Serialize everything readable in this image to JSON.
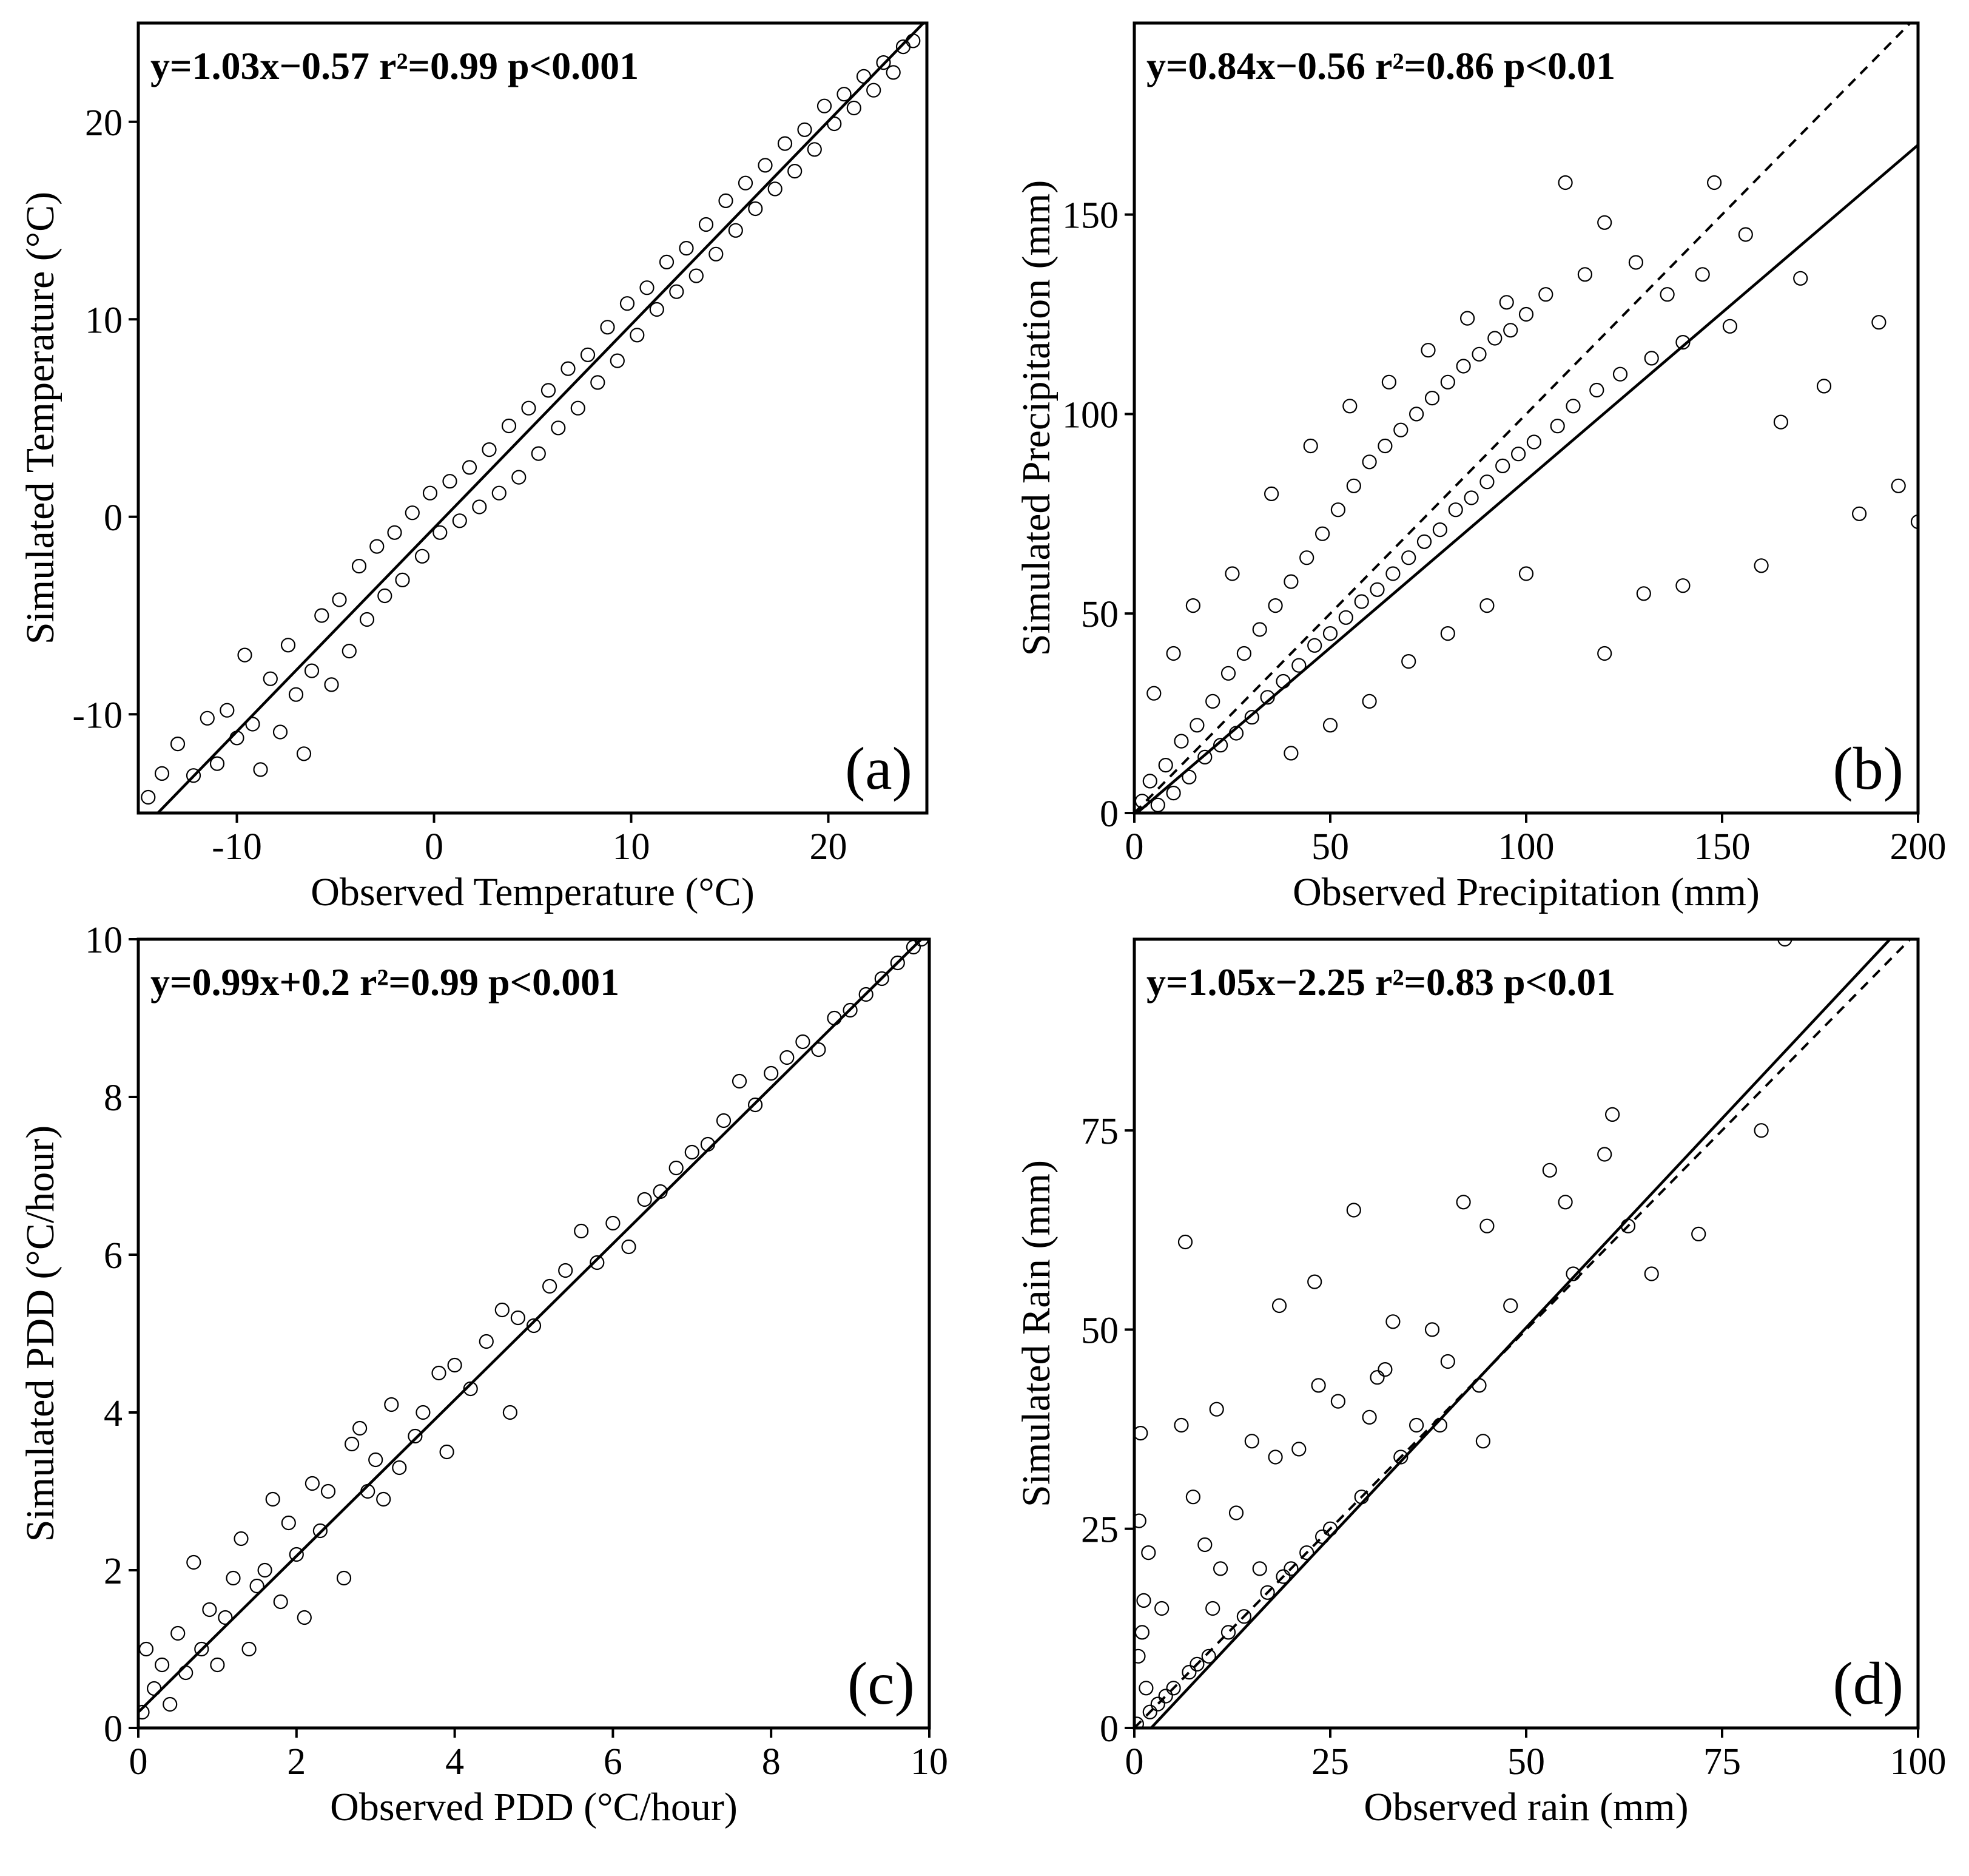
{
  "chart_data": [
    {
      "id": "a",
      "type": "scatter",
      "panel_label": "(a)",
      "xlabel": "Observed Temperature (°C)",
      "ylabel": "Simulated Temperature (°C)",
      "xlim": [
        -15,
        25
      ],
      "ylim": [
        -15,
        25
      ],
      "xticks": [
        -10,
        0,
        10,
        20
      ],
      "yticks": [
        -10,
        0,
        10,
        20
      ],
      "xtick_labels": [
        "-10",
        "0",
        "10",
        "20"
      ],
      "ytick_labels": [
        "-10",
        "0",
        "10",
        "20"
      ],
      "equation": "y=1.03x−0.57  r²=0.99  p<0.001",
      "fit": {
        "slope": 1.03,
        "intercept": -0.57,
        "r2": 0.99,
        "p": "p<0.001"
      },
      "one_to_one_line": false,
      "points": [
        [
          -14.5,
          -14.2
        ],
        [
          -13.8,
          -13.0
        ],
        [
          -13.0,
          -11.5
        ],
        [
          -12.2,
          -13.1
        ],
        [
          -11.5,
          -10.2
        ],
        [
          -11.0,
          -12.5
        ],
        [
          -10.5,
          -9.8
        ],
        [
          -10.0,
          -11.2
        ],
        [
          -9.6,
          -7.0
        ],
        [
          -9.2,
          -10.5
        ],
        [
          -8.8,
          -12.8
        ],
        [
          -8.3,
          -8.2
        ],
        [
          -7.8,
          -10.9
        ],
        [
          -7.4,
          -6.5
        ],
        [
          -7.0,
          -9.0
        ],
        [
          -6.6,
          -12.0
        ],
        [
          -6.2,
          -7.8
        ],
        [
          -5.7,
          -5.0
        ],
        [
          -5.2,
          -8.5
        ],
        [
          -4.8,
          -4.2
        ],
        [
          -4.3,
          -6.8
        ],
        [
          -3.8,
          -2.5
        ],
        [
          -3.4,
          -5.2
        ],
        [
          -2.9,
          -1.5
        ],
        [
          -2.5,
          -4.0
        ],
        [
          -2.0,
          -0.8
        ],
        [
          -1.6,
          -3.2
        ],
        [
          -1.1,
          0.2
        ],
        [
          -0.6,
          -2.0
        ],
        [
          -0.2,
          1.2
        ],
        [
          0.3,
          -0.8
        ],
        [
          0.8,
          1.8
        ],
        [
          1.3,
          -0.2
        ],
        [
          1.8,
          2.5
        ],
        [
          2.3,
          0.5
        ],
        [
          2.8,
          3.4
        ],
        [
          3.3,
          1.2
        ],
        [
          3.8,
          4.6
        ],
        [
          4.3,
          2.0
        ],
        [
          4.8,
          5.5
        ],
        [
          5.3,
          3.2
        ],
        [
          5.8,
          6.4
        ],
        [
          6.3,
          4.5
        ],
        [
          6.8,
          7.5
        ],
        [
          7.3,
          5.5
        ],
        [
          7.8,
          8.2
        ],
        [
          8.3,
          6.8
        ],
        [
          8.8,
          9.6
        ],
        [
          9.3,
          7.9
        ],
        [
          9.8,
          10.8
        ],
        [
          10.3,
          9.2
        ],
        [
          10.8,
          11.6
        ],
        [
          11.3,
          10.5
        ],
        [
          11.8,
          12.9
        ],
        [
          12.3,
          11.4
        ],
        [
          12.8,
          13.6
        ],
        [
          13.3,
          12.2
        ],
        [
          13.8,
          14.8
        ],
        [
          14.3,
          13.3
        ],
        [
          14.8,
          16.0
        ],
        [
          15.3,
          14.5
        ],
        [
          15.8,
          16.9
        ],
        [
          16.3,
          15.6
        ],
        [
          16.8,
          17.8
        ],
        [
          17.3,
          16.6
        ],
        [
          17.8,
          18.9
        ],
        [
          18.3,
          17.5
        ],
        [
          18.8,
          19.6
        ],
        [
          19.3,
          18.6
        ],
        [
          19.8,
          20.8
        ],
        [
          20.3,
          19.9
        ],
        [
          20.8,
          21.4
        ],
        [
          21.3,
          20.7
        ],
        [
          21.8,
          22.3
        ],
        [
          22.3,
          21.6
        ],
        [
          22.8,
          23.0
        ],
        [
          23.3,
          22.5
        ],
        [
          23.8,
          23.8
        ],
        [
          24.3,
          24.1
        ]
      ]
    },
    {
      "id": "b",
      "type": "scatter",
      "panel_label": "(b)",
      "xlabel": "Observed Precipitation (mm)",
      "ylabel": "Simulated Precipitation (mm)",
      "xlim": [
        0,
        200
      ],
      "ylim": [
        0,
        198
      ],
      "xticks": [
        0,
        50,
        100,
        150,
        200
      ],
      "yticks": [
        0,
        50,
        100,
        150
      ],
      "xtick_labels": [
        "0",
        "50",
        "100",
        "150",
        "200"
      ],
      "ytick_labels": [
        "0",
        "50",
        "100",
        "150"
      ],
      "equation": "y=0.84x−0.56  r²=0.86  p<0.01",
      "fit": {
        "slope": 0.84,
        "intercept": -0.56,
        "r2": 0.86,
        "p": "p<0.01"
      },
      "one_to_one_line": true,
      "points": [
        [
          2,
          3
        ],
        [
          4,
          8
        ],
        [
          6,
          2
        ],
        [
          8,
          12
        ],
        [
          10,
          5
        ],
        [
          12,
          18
        ],
        [
          14,
          9
        ],
        [
          16,
          22
        ],
        [
          18,
          14
        ],
        [
          20,
          28
        ],
        [
          22,
          17
        ],
        [
          24,
          35
        ],
        [
          26,
          20
        ],
        [
          28,
          40
        ],
        [
          30,
          24
        ],
        [
          32,
          46
        ],
        [
          34,
          29
        ],
        [
          36,
          52
        ],
        [
          38,
          33
        ],
        [
          40,
          58
        ],
        [
          42,
          37
        ],
        [
          44,
          64
        ],
        [
          46,
          42
        ],
        [
          48,
          70
        ],
        [
          50,
          45
        ],
        [
          52,
          76
        ],
        [
          54,
          49
        ],
        [
          56,
          82
        ],
        [
          58,
          53
        ],
        [
          60,
          88
        ],
        [
          62,
          56
        ],
        [
          64,
          92
        ],
        [
          66,
          60
        ],
        [
          68,
          96
        ],
        [
          70,
          64
        ],
        [
          72,
          100
        ],
        [
          74,
          68
        ],
        [
          76,
          104
        ],
        [
          78,
          71
        ],
        [
          80,
          108
        ],
        [
          82,
          76
        ],
        [
          84,
          112
        ],
        [
          86,
          79
        ],
        [
          88,
          115
        ],
        [
          90,
          83
        ],
        [
          92,
          119
        ],
        [
          94,
          87
        ],
        [
          96,
          121
        ],
        [
          98,
          90
        ],
        [
          100,
          125
        ],
        [
          102,
          93
        ],
        [
          105,
          130
        ],
        [
          108,
          97
        ],
        [
          110,
          158
        ],
        [
          112,
          102
        ],
        [
          115,
          135
        ],
        [
          118,
          106
        ],
        [
          120,
          148
        ],
        [
          124,
          110
        ],
        [
          128,
          138
        ],
        [
          132,
          114
        ],
        [
          136,
          130
        ],
        [
          140,
          118
        ],
        [
          145,
          135
        ],
        [
          148,
          158
        ],
        [
          152,
          122
        ],
        [
          156,
          145
        ],
        [
          160,
          62
        ],
        [
          165,
          98
        ],
        [
          170,
          134
        ],
        [
          176,
          107
        ],
        [
          185,
          75
        ],
        [
          190,
          123
        ],
        [
          195,
          82
        ],
        [
          200,
          73
        ],
        [
          5,
          30
        ],
        [
          10,
          40
        ],
        [
          15,
          52
        ],
        [
          25,
          60
        ],
        [
          35,
          80
        ],
        [
          45,
          92
        ],
        [
          55,
          102
        ],
        [
          65,
          108
        ],
        [
          75,
          116
        ],
        [
          85,
          124
        ],
        [
          95,
          128
        ],
        [
          40,
          15
        ],
        [
          50,
          22
        ],
        [
          60,
          28
        ],
        [
          70,
          38
        ],
        [
          80,
          45
        ],
        [
          90,
          52
        ],
        [
          100,
          60
        ],
        [
          120,
          40
        ],
        [
          130,
          55
        ],
        [
          140,
          57
        ]
      ]
    },
    {
      "id": "c",
      "type": "scatter",
      "panel_label": "(c)",
      "xlabel": "Observed PDD (°C/hour)",
      "ylabel": "Simulated PDD (°C/hour)",
      "xlim": [
        0,
        10
      ],
      "ylim": [
        0,
        10
      ],
      "xticks": [
        0,
        2,
        4,
        6,
        8,
        10
      ],
      "yticks": [
        0,
        2,
        4,
        6,
        8,
        10
      ],
      "xtick_labels": [
        "0",
        "2",
        "4",
        "6",
        "8",
        "10"
      ],
      "ytick_labels": [
        "0",
        "2",
        "4",
        "6",
        "8",
        "10"
      ],
      "equation": "y=0.99x+0.2  r²=0.99  p<0.001",
      "fit": {
        "slope": 0.99,
        "intercept": 0.2,
        "r2": 0.99,
        "p": "p<0.001"
      },
      "one_to_one_line": false,
      "points": [
        [
          0.05,
          0.2
        ],
        [
          0.1,
          1.0
        ],
        [
          0.2,
          0.5
        ],
        [
          0.3,
          0.8
        ],
        [
          0.4,
          0.3
        ],
        [
          0.5,
          1.2
        ],
        [
          0.6,
          0.7
        ],
        [
          0.7,
          2.1
        ],
        [
          0.8,
          1.0
        ],
        [
          0.9,
          1.5
        ],
        [
          1.0,
          0.8
        ],
        [
          1.1,
          1.4
        ],
        [
          1.2,
          1.9
        ],
        [
          1.3,
          2.4
        ],
        [
          1.4,
          1.0
        ],
        [
          1.5,
          1.8
        ],
        [
          1.6,
          2.0
        ],
        [
          1.7,
          2.9
        ],
        [
          1.8,
          1.6
        ],
        [
          1.9,
          2.6
        ],
        [
          2.0,
          2.2
        ],
        [
          2.1,
          1.4
        ],
        [
          2.2,
          3.1
        ],
        [
          2.3,
          2.5
        ],
        [
          2.4,
          3.0
        ],
        [
          2.6,
          1.9
        ],
        [
          2.7,
          3.6
        ],
        [
          2.8,
          3.8
        ],
        [
          2.9,
          3.0
        ],
        [
          3.0,
          3.4
        ],
        [
          3.1,
          2.9
        ],
        [
          3.2,
          4.1
        ],
        [
          3.3,
          3.3
        ],
        [
          3.5,
          3.7
        ],
        [
          3.6,
          4.0
        ],
        [
          3.8,
          4.5
        ],
        [
          3.9,
          3.5
        ],
        [
          4.0,
          4.6
        ],
        [
          4.2,
          4.3
        ],
        [
          4.4,
          4.9
        ],
        [
          4.6,
          5.3
        ],
        [
          4.7,
          4.0
        ],
        [
          4.8,
          5.2
        ],
        [
          5.0,
          5.1
        ],
        [
          5.2,
          5.6
        ],
        [
          5.4,
          5.8
        ],
        [
          5.6,
          6.3
        ],
        [
          5.8,
          5.9
        ],
        [
          6.0,
          6.4
        ],
        [
          6.2,
          6.1
        ],
        [
          6.4,
          6.7
        ],
        [
          6.6,
          6.8
        ],
        [
          6.8,
          7.1
        ],
        [
          7.0,
          7.3
        ],
        [
          7.2,
          7.4
        ],
        [
          7.4,
          7.7
        ],
        [
          7.6,
          8.2
        ],
        [
          7.8,
          7.9
        ],
        [
          8.0,
          8.3
        ],
        [
          8.2,
          8.5
        ],
        [
          8.4,
          8.7
        ],
        [
          8.6,
          8.6
        ],
        [
          8.8,
          9.0
        ],
        [
          9.0,
          9.1
        ],
        [
          9.2,
          9.3
        ],
        [
          9.4,
          9.5
        ],
        [
          9.6,
          9.7
        ],
        [
          9.8,
          9.9
        ],
        [
          9.9,
          10.0
        ]
      ]
    },
    {
      "id": "d",
      "type": "scatter",
      "panel_label": "(d)",
      "xlabel": "Observed rain (mm)",
      "ylabel": "Simulated Rain (mm)",
      "xlim": [
        0,
        100
      ],
      "ylim": [
        0,
        99
      ],
      "xticks": [
        0,
        25,
        50,
        75,
        100
      ],
      "yticks": [
        0,
        25,
        50,
        75
      ],
      "xtick_labels": [
        "0",
        "25",
        "50",
        "75",
        "100"
      ],
      "ytick_labels": [
        "0",
        "25",
        "50",
        "75"
      ],
      "equation": "y=1.05x−2.25  r²=0.83  p<0.01",
      "fit": {
        "slope": 1.05,
        "intercept": -2.25,
        "r2": 0.83,
        "p": "p<0.01"
      },
      "one_to_one_line": true,
      "points": [
        [
          0.3,
          0.5
        ],
        [
          0.5,
          9
        ],
        [
          0.6,
          26
        ],
        [
          0.8,
          37
        ],
        [
          1.0,
          12
        ],
        [
          1.2,
          16
        ],
        [
          1.5,
          5
        ],
        [
          1.8,
          22
        ],
        [
          2,
          2
        ],
        [
          3,
          3
        ],
        [
          3.5,
          15
        ],
        [
          4,
          4
        ],
        [
          5,
          5
        ],
        [
          6,
          38
        ],
        [
          6.5,
          61
        ],
        [
          7,
          7
        ],
        [
          7.5,
          29
        ],
        [
          8,
          8
        ],
        [
          9,
          23
        ],
        [
          9.5,
          9
        ],
        [
          10,
          15
        ],
        [
          10.5,
          40
        ],
        [
          11,
          20
        ],
        [
          12,
          12
        ],
        [
          13,
          27
        ],
        [
          14,
          14
        ],
        [
          15,
          36
        ],
        [
          16,
          20
        ],
        [
          17,
          17
        ],
        [
          18,
          34
        ],
        [
          18.5,
          53
        ],
        [
          19,
          19
        ],
        [
          20,
          20
        ],
        [
          21,
          35
        ],
        [
          22,
          22
        ],
        [
          23,
          56
        ],
        [
          23.5,
          43
        ],
        [
          24,
          24
        ],
        [
          25,
          25
        ],
        [
          26,
          41
        ],
        [
          28,
          65
        ],
        [
          29,
          29
        ],
        [
          30,
          39
        ],
        [
          31,
          44
        ],
        [
          32,
          45
        ],
        [
          33,
          51
        ],
        [
          34,
          34
        ],
        [
          36,
          38
        ],
        [
          38,
          50
        ],
        [
          39,
          38
        ],
        [
          40,
          46
        ],
        [
          42,
          66
        ],
        [
          44,
          43
        ],
        [
          44.5,
          36
        ],
        [
          45,
          63
        ],
        [
          48,
          53
        ],
        [
          53,
          70
        ],
        [
          55,
          66
        ],
        [
          56,
          57
        ],
        [
          60,
          72
        ],
        [
          61,
          77
        ],
        [
          63,
          63
        ],
        [
          66,
          57
        ],
        [
          72,
          62
        ],
        [
          80,
          75
        ],
        [
          83,
          99
        ]
      ]
    }
  ]
}
